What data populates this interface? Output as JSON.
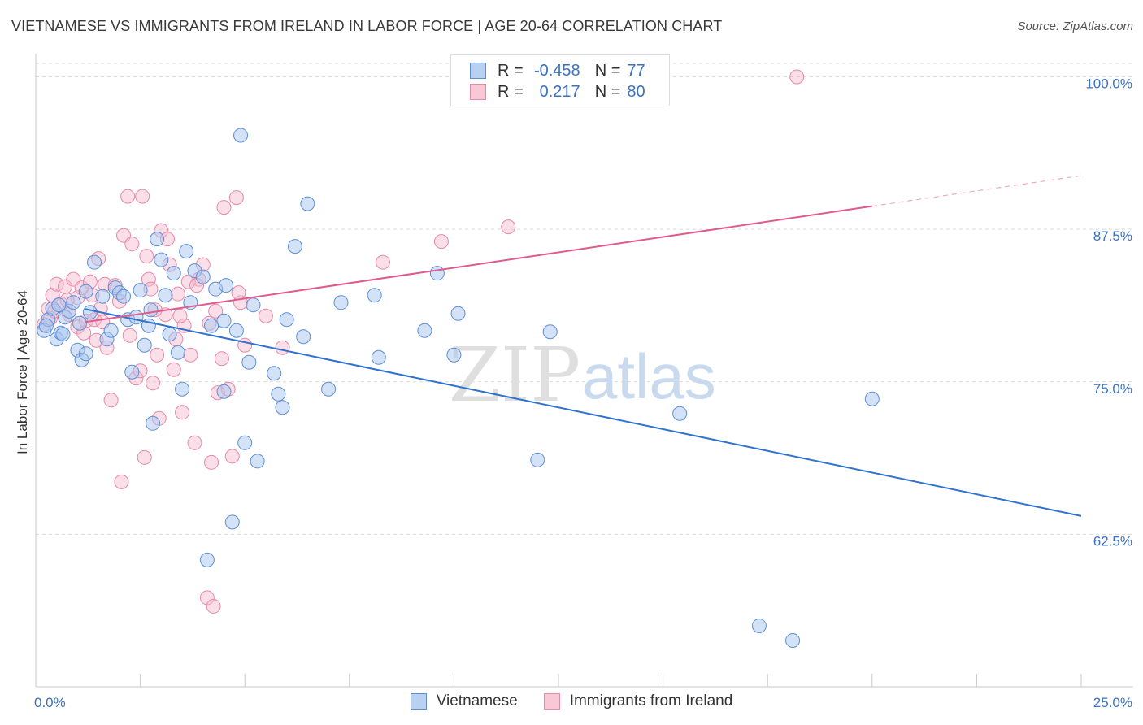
{
  "header": {
    "title": "VIETNAMESE VS IMMIGRANTS FROM IRELAND IN LABOR FORCE | AGE 20-64 CORRELATION CHART",
    "source": "Source: ZipAtlas.com"
  },
  "watermark": {
    "zip": "ZIP",
    "atlas": "atlas"
  },
  "stats": {
    "r_label": "R =",
    "n_label": "N =",
    "rows": [
      {
        "series": "Vietnamese",
        "r": "-0.458",
        "n": "77"
      },
      {
        "series": "Immigrants from Ireland",
        "r": "0.217",
        "n": "80"
      }
    ]
  },
  "legend": [
    {
      "label": "Vietnamese"
    },
    {
      "label": "Immigrants from Ireland"
    }
  ],
  "colors": {
    "blue_fill": "#a8c6f0",
    "blue_stroke": "#5e8fd6",
    "blue_line": "#2f72d0",
    "pink_fill": "#f6b9cc",
    "pink_stroke": "#e58aa8",
    "pink_line": "#e05a8b",
    "tick_text": "#3a72c4",
    "grid": "#d9d9d9"
  },
  "chart_data": {
    "type": "scatter",
    "title": "VIETNAMESE VS IMMIGRANTS FROM IRELAND IN LABOR FORCE | AGE 20-64 CORRELATION CHART",
    "xlabel": "",
    "ylabel": "In Labor Force | Age 20-64",
    "xlim": [
      0,
      25
    ],
    "ylim": [
      50,
      101.5
    ],
    "x_tick_labels": [
      "0.0%",
      "25.0%"
    ],
    "y_ticks": [
      62.5,
      75.0,
      87.5,
      100.0
    ],
    "y_tick_labels": [
      "62.5%",
      "75.0%",
      "87.5%",
      "100.0%"
    ],
    "series": [
      {
        "name": "Vietnamese",
        "points": [
          [
            0.2,
            79.2
          ],
          [
            0.3,
            80.1
          ],
          [
            0.4,
            81.0
          ],
          [
            0.5,
            78.5
          ],
          [
            0.6,
            79.0
          ],
          [
            0.7,
            80.3
          ],
          [
            0.8,
            80.8
          ],
          [
            0.9,
            81.5
          ],
          [
            1.0,
            77.6
          ],
          [
            1.1,
            76.8
          ],
          [
            1.2,
            77.3
          ],
          [
            1.2,
            82.4
          ],
          [
            1.3,
            80.7
          ],
          [
            1.4,
            84.8
          ],
          [
            1.6,
            82.0
          ],
          [
            1.7,
            78.5
          ],
          [
            1.8,
            79.2
          ],
          [
            1.9,
            82.7
          ],
          [
            2.0,
            82.3
          ],
          [
            2.1,
            82.0
          ],
          [
            2.2,
            80.1
          ],
          [
            2.3,
            75.8
          ],
          [
            2.4,
            80.3
          ],
          [
            2.5,
            82.5
          ],
          [
            2.6,
            78.0
          ],
          [
            2.7,
            79.6
          ],
          [
            2.8,
            71.6
          ],
          [
            2.9,
            86.7
          ],
          [
            3.0,
            85.0
          ],
          [
            3.1,
            82.1
          ],
          [
            3.2,
            78.9
          ],
          [
            3.3,
            83.9
          ],
          [
            3.4,
            77.4
          ],
          [
            3.5,
            74.4
          ],
          [
            3.6,
            85.7
          ],
          [
            3.7,
            81.5
          ],
          [
            3.8,
            84.1
          ],
          [
            4.0,
            83.6
          ],
          [
            4.1,
            60.4
          ],
          [
            4.2,
            79.6
          ],
          [
            4.3,
            82.6
          ],
          [
            4.5,
            74.2
          ],
          [
            4.5,
            80.0
          ],
          [
            4.7,
            63.5
          ],
          [
            4.8,
            79.2
          ],
          [
            4.9,
            95.2
          ],
          [
            5.0,
            70.0
          ],
          [
            5.1,
            76.6
          ],
          [
            5.2,
            81.3
          ],
          [
            5.3,
            68.5
          ],
          [
            5.7,
            75.7
          ],
          [
            5.8,
            74.0
          ],
          [
            5.9,
            72.9
          ],
          [
            6.0,
            80.1
          ],
          [
            6.2,
            86.1
          ],
          [
            6.4,
            78.7
          ],
          [
            6.5,
            89.6
          ],
          [
            7.0,
            74.4
          ],
          [
            7.3,
            81.5
          ],
          [
            8.1,
            82.1
          ],
          [
            8.2,
            77.0
          ],
          [
            9.3,
            79.2
          ],
          [
            9.6,
            83.9
          ],
          [
            10.0,
            77.2
          ],
          [
            10.1,
            80.6
          ],
          [
            12.0,
            68.6
          ],
          [
            12.3,
            79.1
          ],
          [
            15.4,
            72.4
          ],
          [
            17.3,
            55.0
          ],
          [
            18.1,
            53.8
          ],
          [
            20.0,
            73.6
          ],
          [
            0.25,
            79.6
          ],
          [
            0.55,
            81.3
          ],
          [
            0.65,
            78.9
          ],
          [
            1.05,
            79.8
          ],
          [
            2.75,
            80.9
          ],
          [
            4.55,
            82.9
          ]
        ]
      },
      {
        "name": "Immigrants from Ireland",
        "points": [
          [
            0.2,
            79.7
          ],
          [
            0.3,
            81.0
          ],
          [
            0.35,
            80.2
          ],
          [
            0.4,
            82.1
          ],
          [
            0.5,
            83.0
          ],
          [
            0.6,
            81.4
          ],
          [
            0.7,
            82.8
          ],
          [
            0.8,
            80.5
          ],
          [
            0.9,
            83.4
          ],
          [
            1.0,
            79.5
          ],
          [
            1.0,
            81.9
          ],
          [
            1.1,
            82.7
          ],
          [
            1.2,
            80.0
          ],
          [
            1.3,
            83.2
          ],
          [
            1.4,
            80.1
          ],
          [
            1.5,
            85.1
          ],
          [
            1.6,
            79.9
          ],
          [
            1.65,
            83.0
          ],
          [
            1.7,
            77.8
          ],
          [
            1.8,
            73.5
          ],
          [
            1.9,
            82.9
          ],
          [
            2.0,
            81.6
          ],
          [
            2.1,
            87.0
          ],
          [
            2.2,
            90.2
          ],
          [
            2.25,
            78.8
          ],
          [
            2.3,
            86.3
          ],
          [
            2.4,
            75.3
          ],
          [
            2.5,
            75.9
          ],
          [
            2.55,
            90.2
          ],
          [
            2.6,
            68.8
          ],
          [
            2.7,
            83.4
          ],
          [
            2.75,
            82.6
          ],
          [
            2.8,
            74.9
          ],
          [
            2.9,
            77.2
          ],
          [
            3.0,
            87.4
          ],
          [
            3.1,
            80.5
          ],
          [
            3.2,
            84.6
          ],
          [
            3.3,
            76.0
          ],
          [
            3.35,
            78.5
          ],
          [
            3.4,
            82.2
          ],
          [
            3.5,
            72.5
          ],
          [
            3.55,
            79.6
          ],
          [
            3.7,
            77.2
          ],
          [
            3.8,
            70.0
          ],
          [
            3.9,
            83.4
          ],
          [
            4.0,
            84.6
          ],
          [
            4.1,
            57.3
          ],
          [
            4.2,
            68.4
          ],
          [
            4.25,
            56.6
          ],
          [
            4.3,
            80.8
          ],
          [
            4.5,
            89.3
          ],
          [
            4.6,
            74.4
          ],
          [
            4.7,
            68.9
          ],
          [
            4.8,
            90.1
          ],
          [
            4.9,
            81.5
          ],
          [
            5.0,
            78.0
          ],
          [
            5.5,
            80.4
          ],
          [
            5.9,
            77.8
          ],
          [
            8.3,
            84.8
          ],
          [
            9.7,
            86.5
          ],
          [
            11.3,
            87.7
          ],
          [
            18.2,
            100.0
          ],
          [
            0.45,
            80.8
          ],
          [
            0.75,
            81.7
          ],
          [
            1.15,
            79.0
          ],
          [
            1.35,
            82.1
          ],
          [
            1.45,
            78.4
          ],
          [
            1.55,
            81.0
          ],
          [
            2.05,
            66.8
          ],
          [
            2.65,
            85.3
          ],
          [
            2.85,
            80.9
          ],
          [
            2.95,
            72.0
          ],
          [
            3.15,
            86.7
          ],
          [
            3.45,
            80.4
          ],
          [
            3.65,
            83.2
          ],
          [
            3.85,
            82.9
          ],
          [
            4.15,
            79.8
          ],
          [
            4.35,
            74.1
          ],
          [
            4.45,
            76.9
          ],
          [
            4.85,
            82.3
          ]
        ]
      }
    ],
    "trendlines": [
      {
        "series": "Vietnamese",
        "x": [
          0,
          25
        ],
        "y": [
          81.8,
          64.0
        ]
      },
      {
        "series": "Immigrants from Ireland",
        "x": [
          0,
          20
        ],
        "y": [
          79.3,
          89.4
        ],
        "dashed_x": [
          20,
          25
        ],
        "dashed_y": [
          89.4,
          91.9
        ]
      }
    ]
  }
}
